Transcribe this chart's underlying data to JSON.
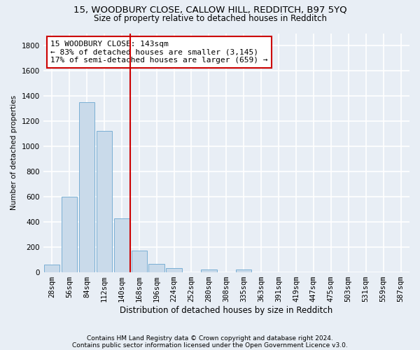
{
  "title1": "15, WOODBURY CLOSE, CALLOW HILL, REDDITCH, B97 5YQ",
  "title2": "Size of property relative to detached houses in Redditch",
  "xlabel": "Distribution of detached houses by size in Redditch",
  "ylabel": "Number of detached properties",
  "categories": [
    "28sqm",
    "56sqm",
    "84sqm",
    "112sqm",
    "140sqm",
    "168sqm",
    "196sqm",
    "224sqm",
    "252sqm",
    "280sqm",
    "308sqm",
    "335sqm",
    "363sqm",
    "391sqm",
    "419sqm",
    "447sqm",
    "475sqm",
    "503sqm",
    "531sqm",
    "559sqm",
    "587sqm"
  ],
  "values": [
    60,
    600,
    1350,
    1125,
    430,
    175,
    65,
    35,
    0,
    20,
    0,
    20,
    0,
    0,
    0,
    0,
    0,
    0,
    0,
    0,
    0
  ],
  "bar_color": "#c9daea",
  "bar_edge_color": "#7aafd4",
  "vline_x_index": 4.5,
  "vline_color": "#cc0000",
  "annotation_line1": "15 WOODBURY CLOSE: 143sqm",
  "annotation_line2": "← 83% of detached houses are smaller (3,145)",
  "annotation_line3": "17% of semi-detached houses are larger (659) →",
  "annotation_box_facecolor": "white",
  "annotation_box_edgecolor": "#cc0000",
  "ylim": [
    0,
    1900
  ],
  "yticks": [
    0,
    200,
    400,
    600,
    800,
    1000,
    1200,
    1400,
    1600,
    1800
  ],
  "background_color": "#e8eef5",
  "grid_color": "white",
  "footnote1": "Contains HM Land Registry data © Crown copyright and database right 2024.",
  "footnote2": "Contains public sector information licensed under the Open Government Licence v3.0.",
  "title1_fontsize": 9.5,
  "title2_fontsize": 8.5,
  "xlabel_fontsize": 8.5,
  "ylabel_fontsize": 7.5,
  "tick_fontsize": 7.5,
  "annot_fontsize": 8,
  "footnote_fontsize": 6.5
}
